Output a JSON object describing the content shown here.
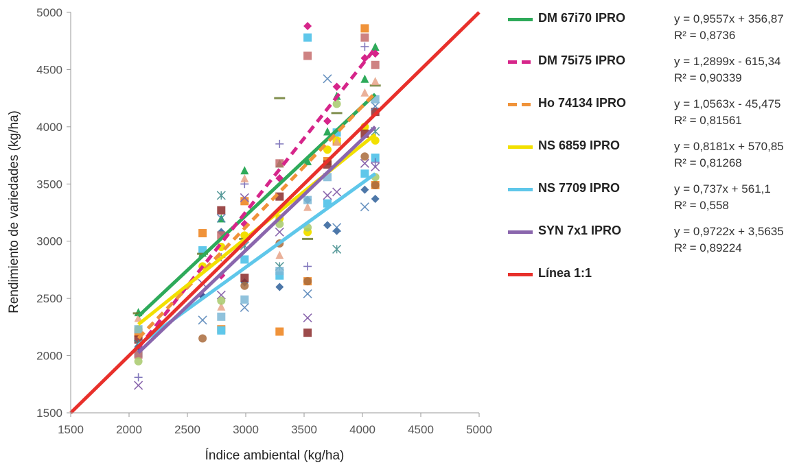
{
  "chart_data": {
    "type": "scatter",
    "title": "",
    "xlabel": "Índice ambiental (kg/ha)",
    "ylabel": "Rendimiento de variedades (kg/ha)",
    "xlim": [
      1500,
      5000
    ],
    "ylim": [
      1500,
      5000
    ],
    "xticks": [
      "1500",
      "2000",
      "2500",
      "3000",
      "3500",
      "4000",
      "4500",
      "5000"
    ],
    "yticks": [
      "1500",
      "2000",
      "2500",
      "3000",
      "3500",
      "4000",
      "4500",
      "5000"
    ],
    "grid": false,
    "legend_position": "right",
    "environments_x": [
      2080,
      2630,
      2790,
      2990,
      3290,
      3530,
      3700,
      3780,
      4020,
      4110
    ],
    "series": [
      {
        "name": "DM 67i70 IPRO",
        "equation": "y = 0,9557x + 356,87",
        "r2": "R² = 0,8736",
        "slope": 0.9557,
        "intercept": 356.87,
        "x_range": [
          2080,
          4110
        ],
        "color": "#2eaa5a",
        "dash": false,
        "points": [
          [
            2080,
            2380
          ],
          [
            2630,
            2900
          ],
          [
            2790,
            3200
          ],
          [
            2990,
            3620
          ],
          [
            3290,
            3680
          ],
          [
            3530,
            3700
          ],
          [
            3700,
            3960
          ],
          [
            3780,
            4270
          ],
          [
            4020,
            4420
          ],
          [
            4110,
            4700
          ]
        ]
      },
      {
        "name": "DM 75i75 IPRO",
        "equation": "y = 1,2899x - 615,34",
        "r2": "R² = 0,90339",
        "slope": 1.2899,
        "intercept": -615.34,
        "x_range": [
          2080,
          4110
        ],
        "color": "#d6258a",
        "dash": true,
        "points": [
          [
            2080,
            2050
          ],
          [
            2630,
            2520
          ],
          [
            2790,
            2700
          ],
          [
            2990,
            3150
          ],
          [
            3290,
            3550
          ],
          [
            3530,
            4880
          ],
          [
            3700,
            4050
          ],
          [
            3780,
            4350
          ],
          [
            4020,
            4600
          ],
          [
            4110,
            4640
          ]
        ]
      },
      {
        "name": "Ho 74134 IPRO",
        "equation": "y = 1,0563x - 45,475",
        "r2": "R² = 0,81561",
        "slope": 1.0563,
        "intercept": -45.475,
        "x_range": [
          2080,
          4110
        ],
        "color": "#f0933a",
        "dash": true,
        "points": [
          [
            2080,
            2200
          ],
          [
            2630,
            3070
          ],
          [
            2790,
            2230
          ],
          [
            2990,
            3350
          ],
          [
            3290,
            2210
          ],
          [
            3530,
            2650
          ],
          [
            3700,
            3700
          ],
          [
            3780,
            3870
          ],
          [
            4020,
            4860
          ],
          [
            4110,
            3490
          ]
        ]
      },
      {
        "name": "NS 6859 IPRO",
        "equation": "y = 0,8181x + 570,85",
        "r2": "R² = 0,81268",
        "slope": 0.8181,
        "intercept": 570.85,
        "x_range": [
          2080,
          4110
        ],
        "color": "#f2e000",
        "dash": false,
        "points": [
          [
            2080,
            2230
          ],
          [
            2630,
            2780
          ],
          [
            2790,
            2950
          ],
          [
            2990,
            3050
          ],
          [
            3290,
            3200
          ],
          [
            3530,
            3080
          ],
          [
            3700,
            3800
          ],
          [
            3780,
            3880
          ],
          [
            4020,
            4000
          ],
          [
            4110,
            3880
          ]
        ]
      },
      {
        "name": "NS 7709 IPRO",
        "equation": "y = 0,737x + 561,1",
        "r2": "R² = 0,558",
        "slope": 0.737,
        "intercept": 561.1,
        "x_range": [
          2080,
          4110
        ],
        "color": "#5fc7ea",
        "dash": false,
        "points": [
          [
            2080,
            2020
          ],
          [
            2630,
            2920
          ],
          [
            2790,
            2220
          ],
          [
            2990,
            2840
          ],
          [
            3290,
            2700
          ],
          [
            3530,
            4780
          ],
          [
            3700,
            3330
          ],
          [
            3780,
            3950
          ],
          [
            4020,
            3590
          ],
          [
            4110,
            3730
          ]
        ]
      },
      {
        "name": "SYN 7x1 IPRO",
        "equation": "y = 0,9722x + 3,5635",
        "r2": "R² = 0,89224",
        "slope": 0.9722,
        "intercept": 3.5635,
        "x_range": [
          2080,
          4110
        ],
        "color": "#8a66ad",
        "dash": false,
        "points": [
          [
            2080,
            1740
          ],
          [
            2630,
            2630
          ],
          [
            2790,
            2530
          ],
          [
            2990,
            3380
          ],
          [
            3290,
            3080
          ],
          [
            3530,
            2330
          ],
          [
            3700,
            3400
          ],
          [
            3780,
            3430
          ],
          [
            4020,
            3680
          ],
          [
            4110,
            3650
          ]
        ]
      },
      {
        "name": "Línea 1:1",
        "equation": "",
        "r2": "",
        "slope": 1,
        "intercept": 0,
        "x_range": [
          1500,
          5000
        ],
        "color": "#e8302b",
        "dash": false,
        "points": []
      }
    ],
    "extra_points": [
      {
        "color": "#2e5f99",
        "marker": "diamond",
        "points": [
          [
            2080,
            2080
          ],
          [
            2630,
            2520
          ],
          [
            2790,
            3080
          ],
          [
            2990,
            2640
          ],
          [
            3290,
            2600
          ],
          [
            3530,
            3360
          ],
          [
            3700,
            3140
          ],
          [
            3780,
            3090
          ],
          [
            4020,
            3450
          ],
          [
            4110,
            3370
          ]
        ]
      },
      {
        "color": "#8b2c2c",
        "marker": "square",
        "points": [
          [
            2080,
            2140
          ],
          [
            2790,
            3270
          ],
          [
            2990,
            2680
          ],
          [
            3290,
            3390
          ],
          [
            3530,
            2200
          ],
          [
            3700,
            3670
          ],
          [
            4020,
            3940
          ],
          [
            4110,
            4130
          ]
        ]
      },
      {
        "color": "#c56c6c",
        "marker": "square",
        "points": [
          [
            2080,
            2010
          ],
          [
            2790,
            3050
          ],
          [
            3290,
            3680
          ],
          [
            3530,
            4620
          ],
          [
            4020,
            4780
          ],
          [
            4110,
            4540
          ]
        ]
      },
      {
        "color": "#a96b3c",
        "marker": "circle",
        "points": [
          [
            2630,
            2150
          ],
          [
            2990,
            2610
          ],
          [
            3290,
            2980
          ],
          [
            3530,
            2650
          ],
          [
            4020,
            3740
          ],
          [
            4110,
            3490
          ]
        ]
      },
      {
        "color": "#6a7c2e",
        "marker": "dash",
        "points": [
          [
            2080,
            2370
          ],
          [
            2630,
            2890
          ],
          [
            2990,
            3020
          ],
          [
            3290,
            4250
          ],
          [
            3530,
            3020
          ],
          [
            3780,
            4120
          ],
          [
            4110,
            4360
          ]
        ]
      },
      {
        "color": "#4d7fb5",
        "marker": "x",
        "points": [
          [
            2630,
            2310
          ],
          [
            2790,
            3200
          ],
          [
            2990,
            2420
          ],
          [
            3530,
            2540
          ],
          [
            3700,
            4420
          ],
          [
            3780,
            3120
          ],
          [
            4020,
            3300
          ],
          [
            4110,
            4180
          ]
        ]
      },
      {
        "color": "#3d8a8a",
        "marker": "star",
        "points": [
          [
            2080,
            2100
          ],
          [
            2790,
            3400
          ],
          [
            2990,
            2960
          ],
          [
            3290,
            2780
          ],
          [
            3780,
            2930
          ],
          [
            4110,
            3960
          ]
        ]
      },
      {
        "color": "#6b5fb0",
        "marker": "plus",
        "points": [
          [
            2080,
            1810
          ],
          [
            2790,
            2860
          ],
          [
            2990,
            3500
          ],
          [
            3290,
            3850
          ],
          [
            3530,
            2780
          ],
          [
            4020,
            4700
          ],
          [
            4110,
            3690
          ]
        ]
      },
      {
        "color": "#e6a388",
        "marker": "triangle",
        "points": [
          [
            2080,
            2330
          ],
          [
            2790,
            2430
          ],
          [
            2990,
            3550
          ],
          [
            3290,
            2880
          ],
          [
            3530,
            3300
          ],
          [
            3780,
            3870
          ],
          [
            4020,
            4300
          ],
          [
            4110,
            4400
          ]
        ]
      },
      {
        "color": "#a7c96b",
        "marker": "circle",
        "points": [
          [
            2080,
            1950
          ],
          [
            2790,
            2480
          ],
          [
            3290,
            3150
          ],
          [
            3530,
            3120
          ],
          [
            3780,
            4200
          ],
          [
            4110,
            3560
          ]
        ]
      },
      {
        "color": "#7cb7d6",
        "marker": "square",
        "points": [
          [
            2080,
            2230
          ],
          [
            2790,
            2340
          ],
          [
            2990,
            2490
          ],
          [
            3290,
            2740
          ],
          [
            3530,
            3360
          ],
          [
            3700,
            3560
          ],
          [
            4110,
            4240
          ]
        ]
      }
    ]
  }
}
